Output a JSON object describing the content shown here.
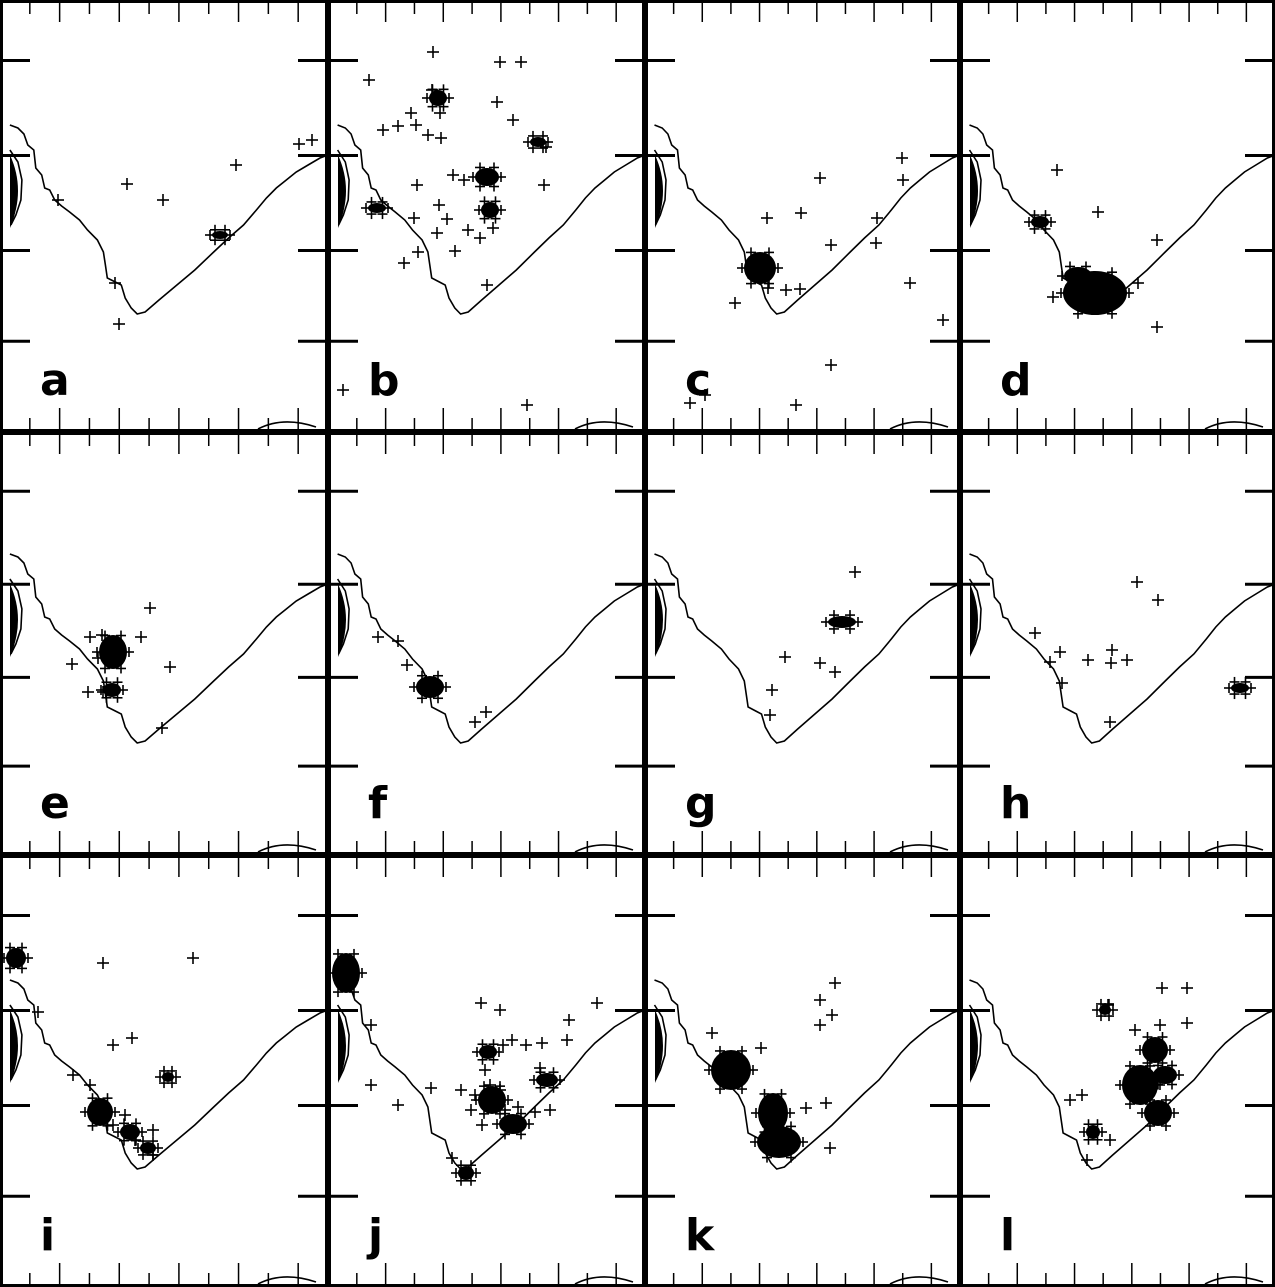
{
  "figure": {
    "panel_labels": [
      "a",
      "b",
      "c",
      "d",
      "e",
      "f",
      "g",
      "h",
      "i",
      "j",
      "k",
      "l"
    ],
    "grid": {
      "rows": 3,
      "columns": 4
    },
    "colors": {
      "background": "#ffffff",
      "ink": "#000000"
    },
    "marker_symbol": "+",
    "panels": [
      {
        "label": "a",
        "sparse": [
          [
            127,
            184
          ],
          [
            163,
            200
          ],
          [
            236,
            165
          ],
          [
            58,
            200
          ],
          [
            115,
            283
          ],
          [
            119,
            324
          ],
          [
            299,
            144
          ],
          [
            312,
            140
          ]
        ],
        "clusters": [
          [
            220,
            235,
            8,
            4
          ]
        ]
      },
      {
        "label": "b",
        "sparse": [
          [
            433,
            52
          ],
          [
            500,
            62
          ],
          [
            521,
            62
          ],
          [
            369,
            80
          ],
          [
            432,
            90
          ],
          [
            497,
            102
          ],
          [
            383,
            130
          ],
          [
            398,
            126
          ],
          [
            411,
            113
          ],
          [
            416,
            125
          ],
          [
            428,
            135
          ],
          [
            441,
            138
          ],
          [
            513,
            120
          ],
          [
            453,
            175
          ],
          [
            464,
            180
          ],
          [
            417,
            185
          ],
          [
            544,
            185
          ],
          [
            439,
            205
          ],
          [
            447,
            219
          ],
          [
            437,
            233
          ],
          [
            418,
            252
          ],
          [
            455,
            251
          ],
          [
            404,
            263
          ],
          [
            487,
            285
          ],
          [
            343,
            390
          ],
          [
            527,
            405
          ],
          [
            414,
            218
          ],
          [
            468,
            230
          ],
          [
            480,
            238
          ],
          [
            493,
            228
          ],
          [
            546,
            147
          ],
          [
            440,
            113
          ]
        ],
        "clusters": [
          [
            438,
            98,
            9,
            8
          ],
          [
            487,
            177,
            12,
            9
          ],
          [
            490,
            210,
            9,
            8
          ],
          [
            538,
            142,
            8,
            5
          ],
          [
            377,
            208,
            9,
            5
          ]
        ]
      },
      {
        "label": "c",
        "sparse": [
          [
            902,
            158
          ],
          [
            820,
            178
          ],
          [
            903,
            180
          ],
          [
            767,
            218
          ],
          [
            801,
            213
          ],
          [
            877,
            218
          ],
          [
            831,
            245
          ],
          [
            876,
            243
          ],
          [
            910,
            283
          ],
          [
            735,
            303
          ],
          [
            943,
            320
          ],
          [
            831,
            365
          ],
          [
            690,
            403
          ],
          [
            705,
            395
          ],
          [
            796,
            405
          ],
          [
            768,
            288
          ],
          [
            786,
            290
          ],
          [
            800,
            289
          ]
        ],
        "clusters": [
          [
            760,
            268,
            16,
            16
          ]
        ]
      },
      {
        "label": "d",
        "sparse": [
          [
            1057,
            170
          ],
          [
            1098,
            212
          ],
          [
            1157,
            240
          ],
          [
            1053,
            297
          ],
          [
            1157,
            327
          ],
          [
            1138,
            283
          ]
        ],
        "clusters": [
          [
            1095,
            293,
            32,
            22
          ],
          [
            1040,
            222,
            9,
            6
          ],
          [
            1078,
            276,
            14,
            9
          ]
        ]
      },
      {
        "label": "e",
        "sparse": [
          [
            150,
            608
          ],
          [
            141,
            637
          ],
          [
            90,
            637
          ],
          [
            102,
            635
          ],
          [
            170,
            667
          ],
          [
            72,
            664
          ],
          [
            98,
            658
          ],
          [
            88,
            692
          ],
          [
            103,
            692
          ],
          [
            162,
            728
          ]
        ],
        "clusters": [
          [
            113,
            652,
            14,
            17
          ],
          [
            112,
            690,
            9,
            7
          ]
        ]
      },
      {
        "label": "f",
        "sparse": [
          [
            378,
            637
          ],
          [
            398,
            641
          ],
          [
            407,
            665
          ],
          [
            475,
            722
          ],
          [
            486,
            712
          ]
        ],
        "clusters": [
          [
            430,
            687,
            14,
            11
          ]
        ]
      },
      {
        "label": "g",
        "sparse": [
          [
            855,
            572
          ],
          [
            785,
            657
          ],
          [
            820,
            663
          ],
          [
            835,
            672
          ],
          [
            772,
            690
          ],
          [
            770,
            715
          ]
        ],
        "clusters": [
          [
            842,
            622,
            14,
            6
          ]
        ]
      },
      {
        "label": "h",
        "sparse": [
          [
            1137,
            582
          ],
          [
            1158,
            600
          ],
          [
            1035,
            633
          ],
          [
            1060,
            652
          ],
          [
            1050,
            662
          ],
          [
            1088,
            660
          ],
          [
            1112,
            650
          ],
          [
            1127,
            660
          ],
          [
            1111,
            663
          ],
          [
            1062,
            683
          ],
          [
            1110,
            722
          ]
        ],
        "clusters": [
          [
            1240,
            688,
            9,
            5
          ]
        ]
      },
      {
        "label": "i",
        "sparse": [
          [
            103,
            963
          ],
          [
            193,
            958
          ],
          [
            113,
            1045
          ],
          [
            132,
            1038
          ],
          [
            73,
            1075
          ],
          [
            90,
            1085
          ],
          [
            125,
            1115
          ],
          [
            113,
            1125
          ],
          [
            153,
            1130
          ],
          [
            135,
            1140
          ],
          [
            153,
            1155
          ],
          [
            38,
            1012
          ]
        ],
        "clusters": [
          [
            16,
            958,
            10,
            10
          ],
          [
            168,
            1077,
            6,
            5
          ],
          [
            100,
            1112,
            13,
            14
          ],
          [
            130,
            1132,
            10,
            8
          ],
          [
            148,
            1148,
            8,
            6
          ]
        ]
      },
      {
        "label": "j",
        "sparse": [
          [
            371,
            1025
          ],
          [
            481,
            1003
          ],
          [
            500,
            1010
          ],
          [
            503,
            1045
          ],
          [
            512,
            1040
          ],
          [
            526,
            1045
          ],
          [
            542,
            1043
          ],
          [
            567,
            1040
          ],
          [
            569,
            1020
          ],
          [
            597,
            1003
          ],
          [
            371,
            1085
          ],
          [
            398,
            1105
          ],
          [
            431,
            1088
          ],
          [
            461,
            1090
          ],
          [
            475,
            1095
          ],
          [
            485,
            1070
          ],
          [
            490,
            1085
          ],
          [
            500,
            1090
          ],
          [
            471,
            1110
          ],
          [
            482,
            1125
          ],
          [
            505,
            1110
          ],
          [
            518,
            1107
          ],
          [
            535,
            1112
          ],
          [
            550,
            1110
          ],
          [
            452,
            1158
          ],
          [
            540,
            1068
          ]
        ],
        "clusters": [
          [
            346,
            973,
            14,
            20
          ],
          [
            488,
            1052,
            9,
            7
          ],
          [
            492,
            1100,
            14,
            14
          ],
          [
            513,
            1124,
            14,
            10
          ],
          [
            547,
            1080,
            11,
            7
          ],
          [
            466,
            1173,
            8,
            7
          ]
        ]
      },
      {
        "label": "k",
        "sparse": [
          [
            835,
            983
          ],
          [
            820,
            1000
          ],
          [
            832,
            1015
          ],
          [
            820,
            1025
          ],
          [
            712,
            1033
          ],
          [
            761,
            1048
          ],
          [
            806,
            1108
          ],
          [
            826,
            1103
          ],
          [
            830,
            1148
          ]
        ],
        "clusters": [
          [
            731,
            1070,
            20,
            20
          ],
          [
            773,
            1113,
            15,
            20
          ],
          [
            779,
            1142,
            22,
            16
          ]
        ]
      },
      {
        "label": "l",
        "sparse": [
          [
            1162,
            988
          ],
          [
            1187,
            988
          ],
          [
            1108,
            1005
          ],
          [
            1135,
            1030
          ],
          [
            1160,
            1025
          ],
          [
            1187,
            1023
          ],
          [
            1082,
            1095
          ],
          [
            1070,
            1100
          ],
          [
            1110,
            1140
          ],
          [
            1087,
            1160
          ]
        ],
        "clusters": [
          [
            1155,
            1050,
            13,
            13
          ],
          [
            1140,
            1085,
            18,
            20
          ],
          [
            1158,
            1113,
            14,
            13
          ],
          [
            1165,
            1075,
            12,
            9
          ],
          [
            1093,
            1132,
            7,
            7
          ],
          [
            1105,
            1010,
            6,
            5
          ]
        ]
      }
    ]
  }
}
